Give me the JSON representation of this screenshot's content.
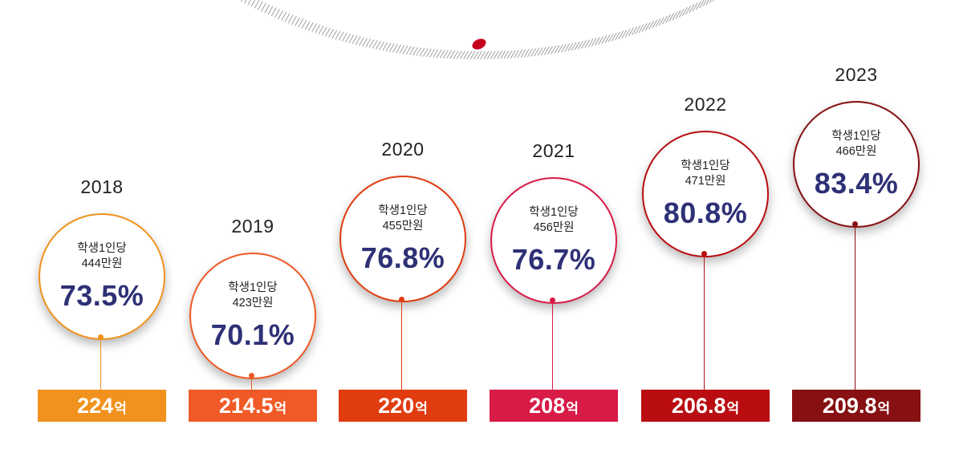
{
  "chart_data": {
    "type": "bar",
    "categories": [
      "2018",
      "2019",
      "2020",
      "2021",
      "2022",
      "2023"
    ],
    "series": [
      {
        "values": [
          224,
          214.5,
          220,
          208,
          206.8,
          209.8
        ],
        "value_labels": [
          "224",
          "214.5",
          "220",
          "208",
          "206.8",
          "209.8"
        ],
        "unit": "억"
      },
      {
        "values": [
          444,
          423,
          455,
          456,
          471,
          466
        ],
        "value_labels": [
          "444만원",
          "423만원",
          "455만원",
          "456만원",
          "471만원",
          "466만원"
        ],
        "label": "학생1인당"
      },
      {
        "values": [
          73.5,
          70.1,
          76.8,
          76.7,
          80.8,
          83.4
        ],
        "value_labels": [
          "73.5%",
          "70.1%",
          "76.8%",
          "76.7%",
          "80.8%",
          "83.4%"
        ]
      }
    ],
    "colors": [
      "#f0921d",
      "#ef5a26",
      "#e03c0f",
      "#d81b47",
      "#b90d11",
      "#861012"
    ],
    "ratio_color": "#2e3176",
    "accent_dot_color": "#c4001c"
  }
}
